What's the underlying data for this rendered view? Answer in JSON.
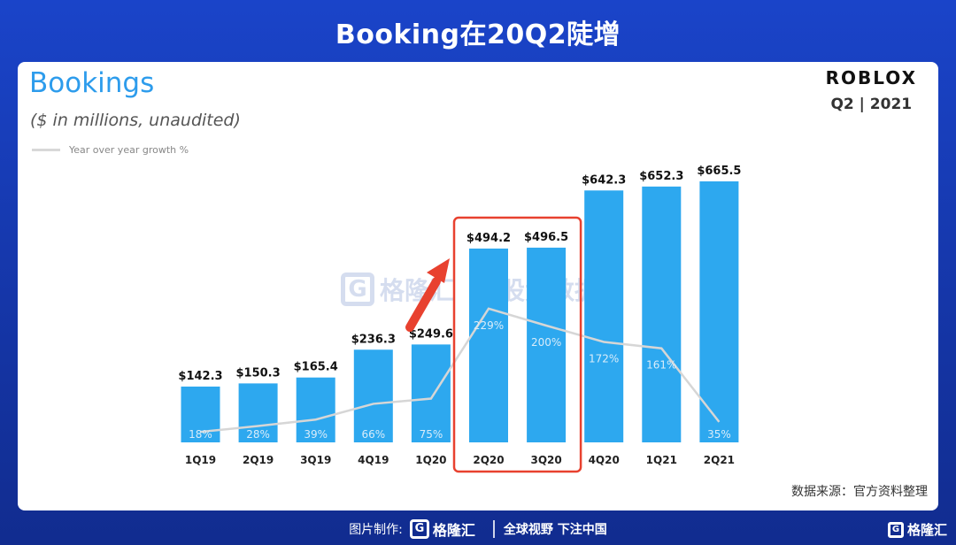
{
  "page_title": "Booking在20Q2陡增",
  "card": {
    "title": "Bookings",
    "subtitle": "($ in millions,  unaudited)",
    "legend_label": "Year over year growth %",
    "brand_logo": "ROBLOX",
    "brand_period": "Q2 | 2021",
    "source_note": "数据来源：官方资料整理",
    "watermark_brand": "格隆汇",
    "watermark_brand2": "勾股大数据"
  },
  "footer": {
    "made_by": "图片制作:",
    "brand": "格隆汇",
    "slogan": "全球视野 下注中国",
    "corner_brand": "格隆汇"
  },
  "colors": {
    "bar": "#2da8ef",
    "growth_line": "#d6d6d6",
    "highlight_box": "#e8412f",
    "arrow": "#e8412f",
    "title": "#2d9cec"
  },
  "chart_data": {
    "type": "bar",
    "title": "Bookings",
    "subtitle": "($ in millions,  unaudited)",
    "categories": [
      "1Q19",
      "2Q19",
      "3Q19",
      "4Q19",
      "1Q20",
      "2Q20",
      "3Q20",
      "4Q20",
      "1Q21",
      "2Q21"
    ],
    "series": [
      {
        "name": "Bookings",
        "values": [
          142.3,
          150.3,
          165.4,
          236.3,
          249.6,
          494.2,
          496.5,
          642.3,
          652.3,
          665.5
        ],
        "labels": [
          "$142.3",
          "$150.3",
          "$165.4",
          "$236.3",
          "$249.6",
          "$494.2",
          "$496.5",
          "$642.3",
          "$652.3",
          "$665.5"
        ]
      },
      {
        "name": "Year over year growth %",
        "type": "line",
        "values": [
          18,
          28,
          39,
          66,
          75,
          229,
          200,
          172,
          161,
          35
        ],
        "labels": [
          "18%",
          "28%",
          "39%",
          "66%",
          "75%",
          "229%",
          "200%",
          "172%",
          "161%",
          "35%"
        ]
      }
    ],
    "highlight_categories": [
      "2Q20",
      "3Q20"
    ],
    "grid": false,
    "legend_position": "top-left"
  }
}
